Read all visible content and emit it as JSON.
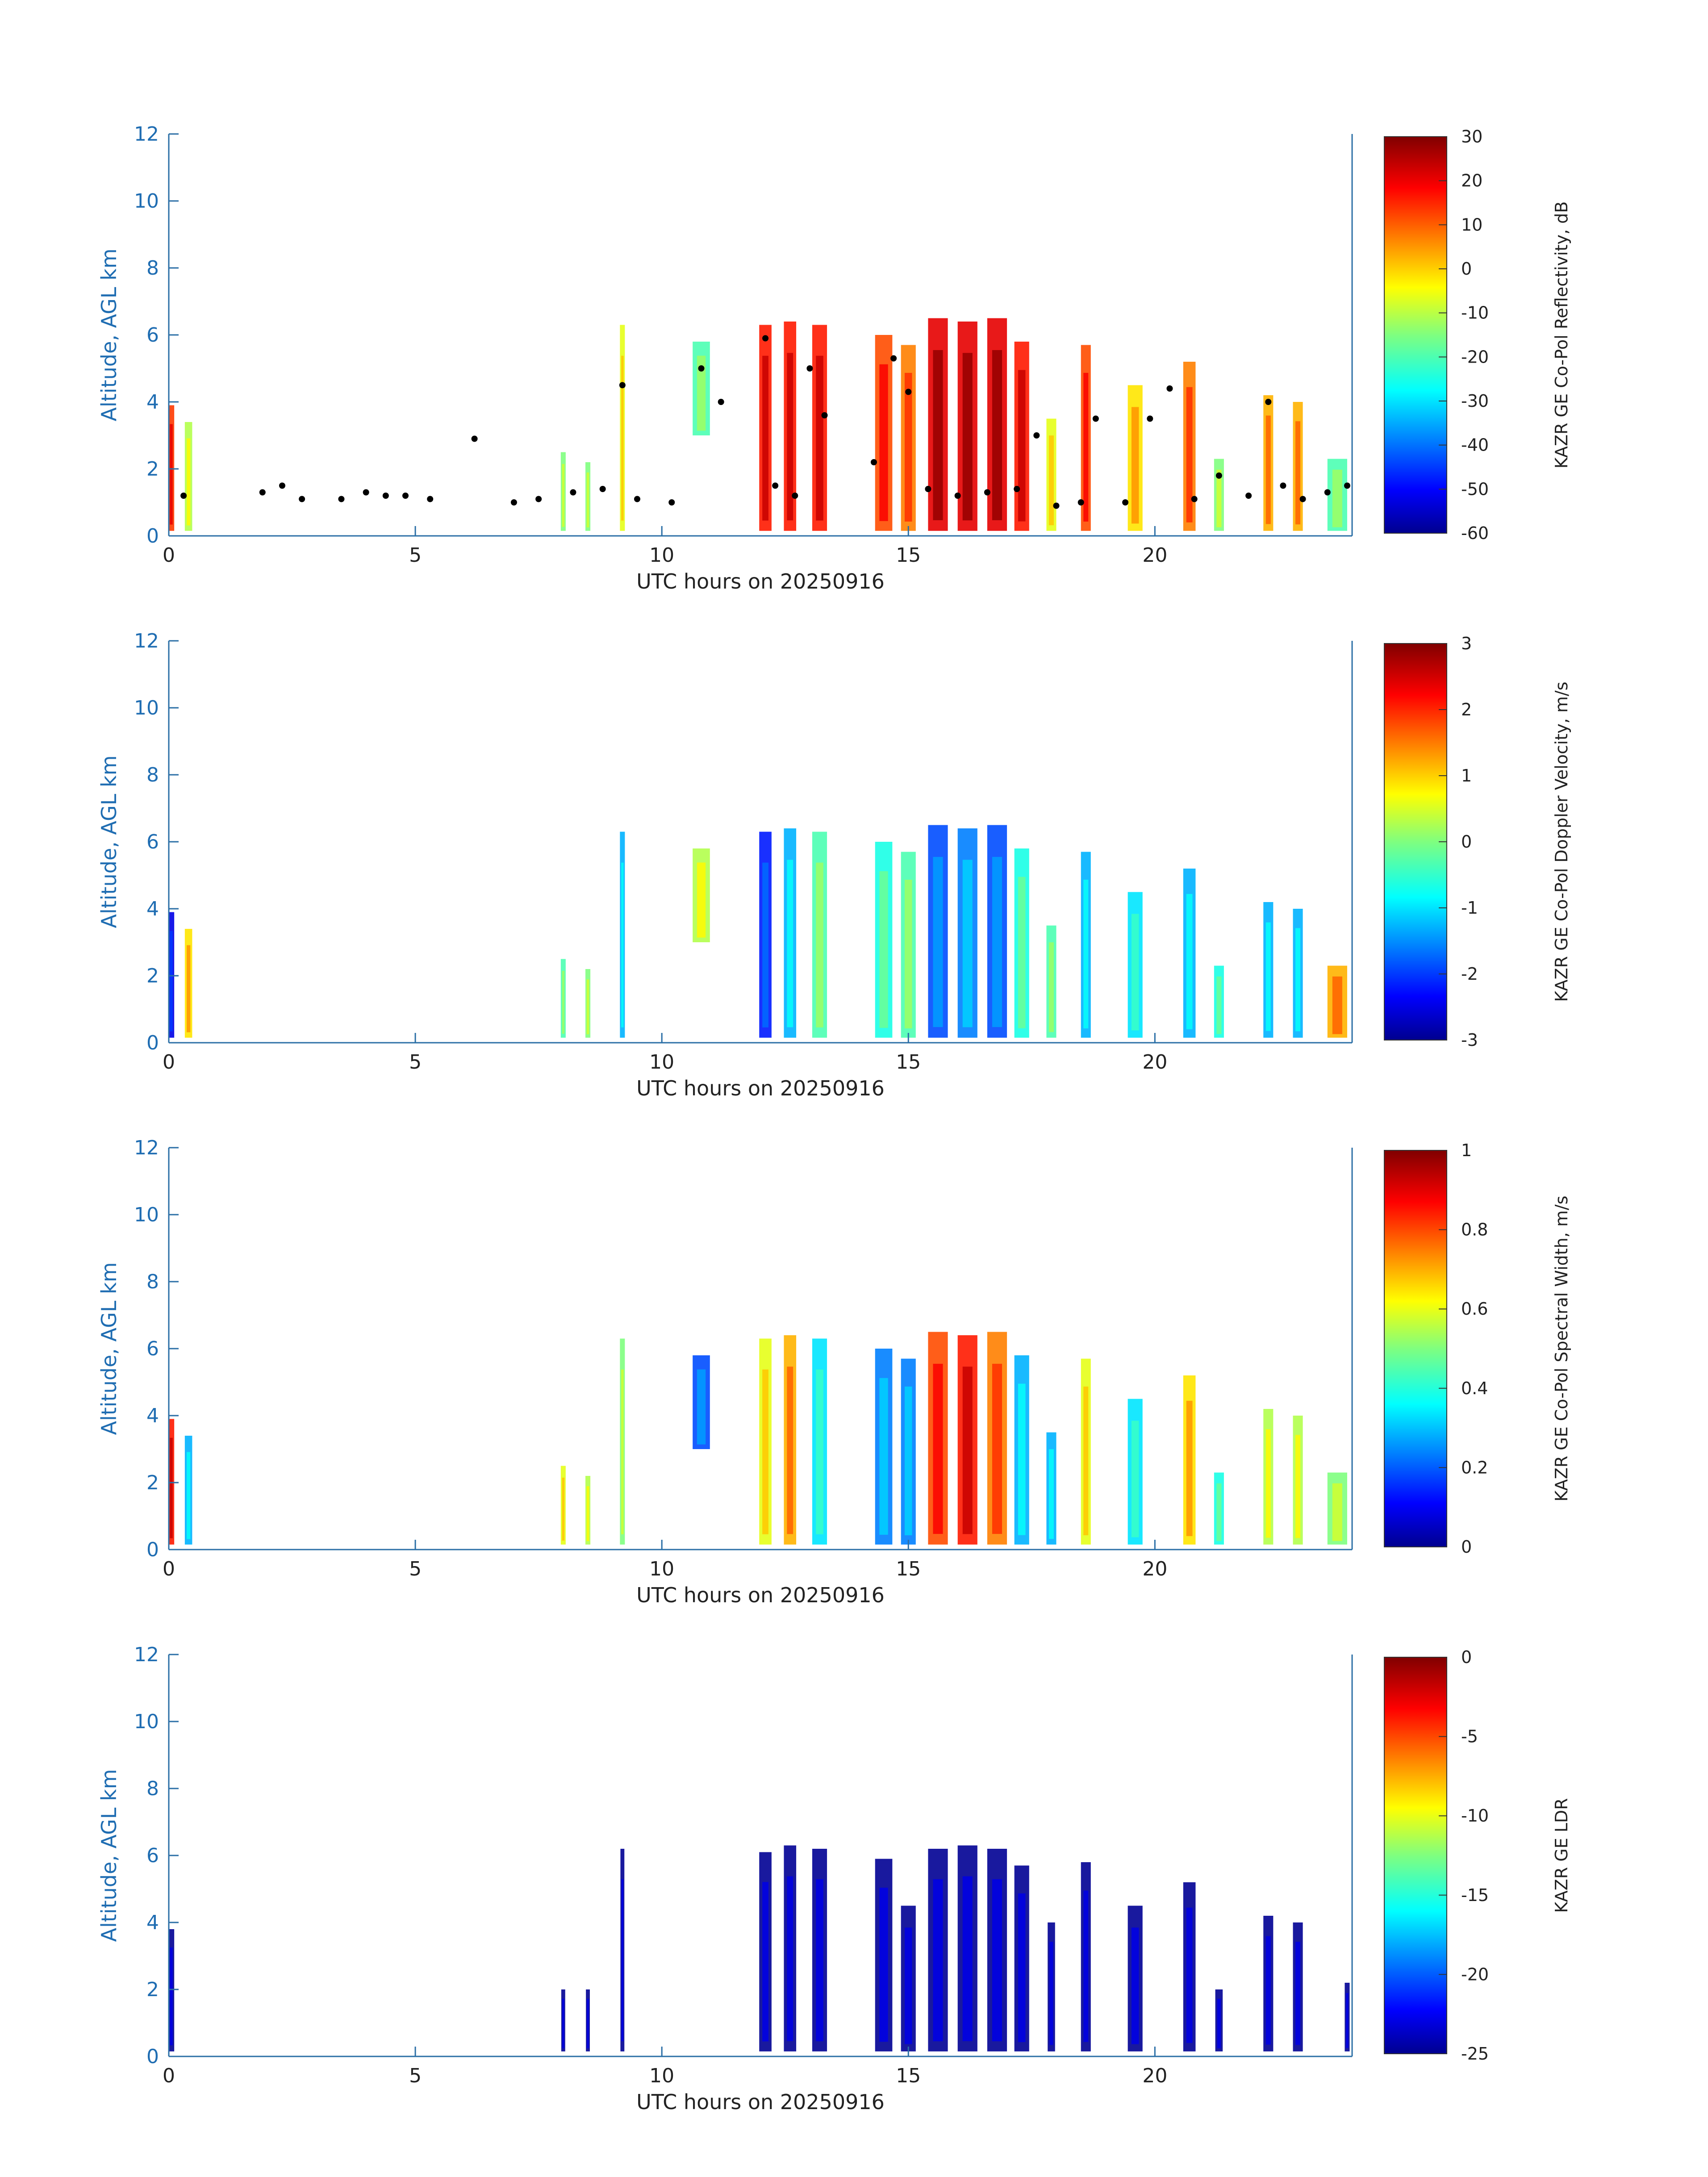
{
  "chart_data": [
    {
      "type": "heatmap",
      "xlabel": "UTC hours on 20250916",
      "ylabel": "Altitude, AGL km",
      "xlim": [
        0,
        24
      ],
      "ylim": [
        0,
        12
      ],
      "xticks": [
        0,
        5,
        10,
        15,
        20
      ],
      "yticks": [
        0,
        2,
        4,
        6,
        8,
        10,
        12
      ],
      "colorbar": {
        "label": "KAZR GE Co-Pol Reflectivity, dB",
        "range": [
          -60,
          30
        ],
        "ticks": [
          30,
          20,
          10,
          0,
          -10,
          -20,
          -30,
          -40,
          -50,
          -60
        ]
      },
      "cloud_columns": [
        {
          "t": 0.05,
          "w": 0.12,
          "top": 3.9,
          "level": 0.82
        },
        {
          "t": 0.4,
          "w": 0.15,
          "top": 3.4,
          "level": 0.55
        },
        {
          "t": 8.0,
          "w": 0.1,
          "top": 2.5,
          "level": 0.5
        },
        {
          "t": 8.5,
          "w": 0.1,
          "top": 2.2,
          "level": 0.5
        },
        {
          "t": 9.2,
          "w": 0.1,
          "top": 6.3,
          "level": 0.6
        },
        {
          "t": 10.8,
          "w": 0.35,
          "top": 5.8,
          "base": 3.0,
          "level": 0.45
        },
        {
          "t": 12.1,
          "w": 0.25,
          "top": 6.3,
          "level": 0.85
        },
        {
          "t": 12.6,
          "w": 0.25,
          "top": 6.4,
          "level": 0.85
        },
        {
          "t": 13.2,
          "w": 0.3,
          "top": 6.3,
          "level": 0.85
        },
        {
          "t": 14.5,
          "w": 0.35,
          "top": 6.0,
          "level": 0.8
        },
        {
          "t": 15.0,
          "w": 0.3,
          "top": 5.7,
          "level": 0.75
        },
        {
          "t": 15.6,
          "w": 0.4,
          "top": 6.5,
          "level": 0.9
        },
        {
          "t": 16.2,
          "w": 0.4,
          "top": 6.4,
          "level": 0.9
        },
        {
          "t": 16.8,
          "w": 0.4,
          "top": 6.5,
          "level": 0.9
        },
        {
          "t": 17.3,
          "w": 0.3,
          "top": 5.8,
          "level": 0.85
        },
        {
          "t": 17.9,
          "w": 0.2,
          "top": 3.5,
          "level": 0.6
        },
        {
          "t": 18.6,
          "w": 0.2,
          "top": 5.7,
          "level": 0.8
        },
        {
          "t": 19.6,
          "w": 0.3,
          "top": 4.5,
          "level": 0.65
        },
        {
          "t": 20.7,
          "w": 0.25,
          "top": 5.2,
          "level": 0.75
        },
        {
          "t": 21.3,
          "w": 0.2,
          "top": 2.3,
          "level": 0.5
        },
        {
          "t": 22.3,
          "w": 0.2,
          "top": 4.2,
          "level": 0.7
        },
        {
          "t": 22.9,
          "w": 0.2,
          "top": 4.0,
          "level": 0.7
        },
        {
          "t": 23.7,
          "w": 0.4,
          "top": 2.3,
          "level": 0.45
        }
      ],
      "cloud_base_markers": [
        {
          "t": 0.3,
          "z": 1.2
        },
        {
          "t": 1.9,
          "z": 1.3
        },
        {
          "t": 2.3,
          "z": 1.5
        },
        {
          "t": 2.7,
          "z": 1.1
        },
        {
          "t": 3.5,
          "z": 1.1
        },
        {
          "t": 4.0,
          "z": 1.3
        },
        {
          "t": 4.4,
          "z": 1.2
        },
        {
          "t": 4.8,
          "z": 1.2
        },
        {
          "t": 5.3,
          "z": 1.1
        },
        {
          "t": 6.2,
          "z": 2.9
        },
        {
          "t": 7.0,
          "z": 1.0
        },
        {
          "t": 7.5,
          "z": 1.1
        },
        {
          "t": 8.2,
          "z": 1.3
        },
        {
          "t": 8.8,
          "z": 1.4
        },
        {
          "t": 9.2,
          "z": 4.5
        },
        {
          "t": 9.5,
          "z": 1.1
        },
        {
          "t": 10.2,
          "z": 1.0
        },
        {
          "t": 10.8,
          "z": 5.0
        },
        {
          "t": 11.2,
          "z": 4.0
        },
        {
          "t": 12.1,
          "z": 5.9
        },
        {
          "t": 12.3,
          "z": 1.5
        },
        {
          "t": 12.7,
          "z": 1.2
        },
        {
          "t": 13.0,
          "z": 5.0
        },
        {
          "t": 13.3,
          "z": 3.6
        },
        {
          "t": 14.3,
          "z": 2.2
        },
        {
          "t": 14.7,
          "z": 5.3
        },
        {
          "t": 15.0,
          "z": 4.3
        },
        {
          "t": 15.4,
          "z": 1.4
        },
        {
          "t": 16.0,
          "z": 1.2
        },
        {
          "t": 16.6,
          "z": 1.3
        },
        {
          "t": 17.2,
          "z": 1.4
        },
        {
          "t": 17.6,
          "z": 3.0
        },
        {
          "t": 18.0,
          "z": 0.9
        },
        {
          "t": 18.5,
          "z": 1.0
        },
        {
          "t": 18.8,
          "z": 3.5
        },
        {
          "t": 19.4,
          "z": 1.0
        },
        {
          "t": 19.9,
          "z": 3.5
        },
        {
          "t": 20.3,
          "z": 4.4
        },
        {
          "t": 20.8,
          "z": 1.1
        },
        {
          "t": 21.3,
          "z": 1.8
        },
        {
          "t": 21.9,
          "z": 1.2
        },
        {
          "t": 22.3,
          "z": 4.0
        },
        {
          "t": 22.6,
          "z": 1.5
        },
        {
          "t": 23.0,
          "z": 1.1
        },
        {
          "t": 23.5,
          "z": 1.3
        },
        {
          "t": 23.9,
          "z": 1.5
        }
      ]
    },
    {
      "type": "heatmap",
      "xlabel": "UTC hours on 20250916",
      "ylabel": "Altitude, AGL km",
      "xlim": [
        0,
        24
      ],
      "ylim": [
        0,
        12
      ],
      "xticks": [
        0,
        5,
        10,
        15,
        20
      ],
      "yticks": [
        0,
        2,
        4,
        6,
        8,
        10,
        12
      ],
      "colorbar": {
        "label": "KAZR GE Co-Pol Doppler Velocity, m/s",
        "range": [
          -3,
          3
        ],
        "ticks": [
          3,
          2,
          1,
          0,
          -1,
          -2,
          -3
        ]
      },
      "cloud_columns": [
        {
          "t": 0.05,
          "w": 0.12,
          "top": 3.9,
          "level": 0.1
        },
        {
          "t": 0.4,
          "w": 0.15,
          "top": 3.4,
          "level": 0.65
        },
        {
          "t": 8.0,
          "w": 0.1,
          "top": 2.5,
          "level": 0.45
        },
        {
          "t": 8.5,
          "w": 0.1,
          "top": 2.2,
          "level": 0.5
        },
        {
          "t": 9.2,
          "w": 0.1,
          "top": 6.3,
          "level": 0.3
        },
        {
          "t": 10.8,
          "w": 0.35,
          "top": 5.8,
          "base": 3.0,
          "level": 0.55
        },
        {
          "t": 12.1,
          "w": 0.25,
          "top": 6.3,
          "level": 0.15
        },
        {
          "t": 12.6,
          "w": 0.25,
          "top": 6.4,
          "level": 0.3
        },
        {
          "t": 13.2,
          "w": 0.3,
          "top": 6.3,
          "level": 0.45
        },
        {
          "t": 14.5,
          "w": 0.35,
          "top": 6.0,
          "level": 0.4
        },
        {
          "t": 15.0,
          "w": 0.3,
          "top": 5.7,
          "level": 0.45
        },
        {
          "t": 15.6,
          "w": 0.4,
          "top": 6.5,
          "level": 0.2
        },
        {
          "t": 16.2,
          "w": 0.4,
          "top": 6.4,
          "level": 0.25
        },
        {
          "t": 16.8,
          "w": 0.4,
          "top": 6.5,
          "level": 0.2
        },
        {
          "t": 17.3,
          "w": 0.3,
          "top": 5.8,
          "level": 0.4
        },
        {
          "t": 17.9,
          "w": 0.2,
          "top": 3.5,
          "level": 0.45
        },
        {
          "t": 18.6,
          "w": 0.2,
          "top": 5.7,
          "level": 0.3
        },
        {
          "t": 19.6,
          "w": 0.3,
          "top": 4.5,
          "level": 0.35
        },
        {
          "t": 20.7,
          "w": 0.25,
          "top": 5.2,
          "level": 0.3
        },
        {
          "t": 21.3,
          "w": 0.2,
          "top": 2.3,
          "level": 0.4
        },
        {
          "t": 22.3,
          "w": 0.2,
          "top": 4.2,
          "level": 0.3
        },
        {
          "t": 22.9,
          "w": 0.2,
          "top": 4.0,
          "level": 0.3
        },
        {
          "t": 23.7,
          "w": 0.4,
          "top": 2.3,
          "level": 0.7
        }
      ]
    },
    {
      "type": "heatmap",
      "xlabel": "UTC hours on 20250916",
      "ylabel": "Altitude, AGL km",
      "xlim": [
        0,
        24
      ],
      "ylim": [
        0,
        12
      ],
      "xticks": [
        0,
        5,
        10,
        15,
        20
      ],
      "yticks": [
        0,
        2,
        4,
        6,
        8,
        10,
        12
      ],
      "colorbar": {
        "label": "KAZR GE Co-Pol Spectral Width, m/s",
        "range": [
          0,
          1
        ],
        "ticks": [
          1,
          0.8,
          0.6,
          0.4,
          0.2,
          0
        ]
      },
      "cloud_columns": [
        {
          "t": 0.05,
          "w": 0.12,
          "top": 3.9,
          "level": 0.85
        },
        {
          "t": 0.4,
          "w": 0.15,
          "top": 3.4,
          "level": 0.3
        },
        {
          "t": 8.0,
          "w": 0.1,
          "top": 2.5,
          "level": 0.6
        },
        {
          "t": 8.5,
          "w": 0.1,
          "top": 2.2,
          "level": 0.55
        },
        {
          "t": 9.2,
          "w": 0.1,
          "top": 6.3,
          "level": 0.5
        },
        {
          "t": 10.8,
          "w": 0.35,
          "top": 5.8,
          "base": 3.0,
          "level": 0.2
        },
        {
          "t": 12.1,
          "w": 0.25,
          "top": 6.3,
          "level": 0.6
        },
        {
          "t": 12.6,
          "w": 0.25,
          "top": 6.4,
          "level": 0.7
        },
        {
          "t": 13.2,
          "w": 0.3,
          "top": 6.3,
          "level": 0.35
        },
        {
          "t": 14.5,
          "w": 0.35,
          "top": 6.0,
          "level": 0.25
        },
        {
          "t": 15.0,
          "w": 0.3,
          "top": 5.7,
          "level": 0.25
        },
        {
          "t": 15.6,
          "w": 0.4,
          "top": 6.5,
          "level": 0.8
        },
        {
          "t": 16.2,
          "w": 0.4,
          "top": 6.4,
          "level": 0.85
        },
        {
          "t": 16.8,
          "w": 0.4,
          "top": 6.5,
          "level": 0.75
        },
        {
          "t": 17.3,
          "w": 0.3,
          "top": 5.8,
          "level": 0.3
        },
        {
          "t": 17.9,
          "w": 0.2,
          "top": 3.5,
          "level": 0.3
        },
        {
          "t": 18.6,
          "w": 0.2,
          "top": 5.7,
          "level": 0.6
        },
        {
          "t": 19.6,
          "w": 0.3,
          "top": 4.5,
          "level": 0.35
        },
        {
          "t": 20.7,
          "w": 0.25,
          "top": 5.2,
          "level": 0.65
        },
        {
          "t": 21.3,
          "w": 0.2,
          "top": 2.3,
          "level": 0.4
        },
        {
          "t": 22.3,
          "w": 0.2,
          "top": 4.2,
          "level": 0.55
        },
        {
          "t": 22.9,
          "w": 0.2,
          "top": 4.0,
          "level": 0.55
        },
        {
          "t": 23.7,
          "w": 0.4,
          "top": 2.3,
          "level": 0.5
        }
      ]
    },
    {
      "type": "heatmap",
      "xlabel": "UTC hours on 20250916",
      "ylabel": "Altitude, AGL km",
      "xlim": [
        0,
        24
      ],
      "ylim": [
        0,
        12
      ],
      "xticks": [
        0,
        5,
        10,
        15,
        20
      ],
      "yticks": [
        0,
        2,
        4,
        6,
        8,
        10,
        12
      ],
      "colorbar": {
        "label": "KAZR GE LDR",
        "range": [
          -25,
          0
        ],
        "ticks": [
          0,
          -5,
          -10,
          -15,
          -20,
          -25
        ]
      },
      "cloud_columns": [
        {
          "t": 0.05,
          "w": 0.12,
          "top": 3.8,
          "level": 0.02
        },
        {
          "t": 8.0,
          "w": 0.08,
          "top": 2.0,
          "level": 0.02
        },
        {
          "t": 8.5,
          "w": 0.08,
          "top": 2.0,
          "level": 0.02
        },
        {
          "t": 9.2,
          "w": 0.08,
          "top": 6.2,
          "level": 0.02
        },
        {
          "t": 12.1,
          "w": 0.25,
          "top": 6.1,
          "level": 0.02
        },
        {
          "t": 12.6,
          "w": 0.25,
          "top": 6.3,
          "level": 0.02
        },
        {
          "t": 13.2,
          "w": 0.3,
          "top": 6.2,
          "level": 0.02
        },
        {
          "t": 14.5,
          "w": 0.35,
          "top": 5.9,
          "level": 0.02
        },
        {
          "t": 15.0,
          "w": 0.3,
          "top": 4.5,
          "level": 0.02
        },
        {
          "t": 15.6,
          "w": 0.4,
          "top": 6.2,
          "level": 0.02
        },
        {
          "t": 16.2,
          "w": 0.4,
          "top": 6.3,
          "level": 0.02
        },
        {
          "t": 16.8,
          "w": 0.4,
          "top": 6.2,
          "level": 0.02
        },
        {
          "t": 17.3,
          "w": 0.3,
          "top": 5.7,
          "level": 0.02
        },
        {
          "t": 17.9,
          "w": 0.15,
          "top": 4.0,
          "level": 0.02
        },
        {
          "t": 18.6,
          "w": 0.2,
          "top": 5.8,
          "level": 0.02
        },
        {
          "t": 19.6,
          "w": 0.3,
          "top": 4.5,
          "level": 0.02
        },
        {
          "t": 20.7,
          "w": 0.25,
          "top": 5.2,
          "level": 0.02
        },
        {
          "t": 21.3,
          "w": 0.15,
          "top": 2.0,
          "level": 0.02
        },
        {
          "t": 22.3,
          "w": 0.2,
          "top": 4.2,
          "level": 0.02
        },
        {
          "t": 22.9,
          "w": 0.2,
          "top": 4.0,
          "level": 0.02
        },
        {
          "t": 23.9,
          "w": 0.1,
          "top": 2.2,
          "level": 0.02
        }
      ]
    }
  ]
}
